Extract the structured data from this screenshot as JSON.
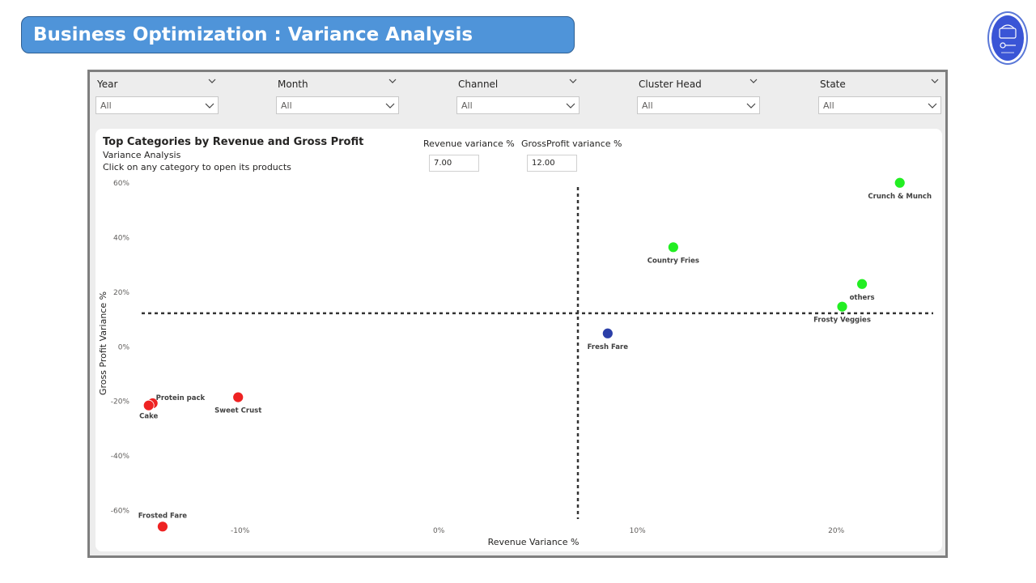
{
  "header": {
    "title": "Business Optimization : Variance Analysis"
  },
  "logo": {
    "icon": "crunchy-corner-logo-icon"
  },
  "slicers": [
    {
      "label": "Year",
      "value": "All"
    },
    {
      "label": "Month",
      "value": "All"
    },
    {
      "label": "Channel",
      "value": "All"
    },
    {
      "label": "Cluster Head",
      "value": "All"
    },
    {
      "label": "State",
      "value": "All"
    }
  ],
  "panel": {
    "title": "Top Categories by Revenue and Gross Profit",
    "subtitle": "Variance Analysis",
    "instruction": "Click on any category to open its products"
  },
  "params": {
    "revenue_label": "Revenue variance %",
    "revenue_value": "7.00",
    "gp_label": "GrossProfit variance %",
    "gp_value": "12.00"
  },
  "colors": {
    "above": "#22ee22",
    "middle": "#2b3fa8",
    "below": "#ee2222",
    "accent": "#4f94d9"
  },
  "chart_data": {
    "type": "scatter",
    "xlabel": "Revenue Variance %",
    "ylabel": "Gross Profit Variance %",
    "xlim": [
      -15.2,
      24.8
    ],
    "ylim": [
      -67,
      63
    ],
    "xticks": [
      {
        "value": -10,
        "label": "-10%"
      },
      {
        "value": 0,
        "label": "0%"
      },
      {
        "value": 10,
        "label": "10%"
      },
      {
        "value": 20,
        "label": "20%"
      }
    ],
    "yticks": [
      {
        "value": 60,
        "label": "60%"
      },
      {
        "value": 40,
        "label": "40%"
      },
      {
        "value": 20,
        "label": "20%"
      },
      {
        "value": 0,
        "label": "0%"
      },
      {
        "value": -20,
        "label": "-20%"
      },
      {
        "value": -40,
        "label": "-40%"
      },
      {
        "value": -60,
        "label": "-60%"
      }
    ],
    "reference_lines": {
      "x": 7.0,
      "y": 12.0
    },
    "points": [
      {
        "label": "Crunch & Munch",
        "x": 23.2,
        "y": 59.8,
        "color": "#22ee22"
      },
      {
        "label": "Country Fries",
        "x": 11.8,
        "y": 36.2,
        "color": "#22ee22"
      },
      {
        "label": "others",
        "x": 21.3,
        "y": 22.7,
        "color": "#22ee22"
      },
      {
        "label": "Frosty Veggies",
        "x": 20.3,
        "y": 14.4,
        "color": "#22ee22"
      },
      {
        "label": "Fresh Fare",
        "x": 8.5,
        "y": 4.6,
        "color": "#2b3fa8"
      },
      {
        "label": "Sweet Crust",
        "x": -10.1,
        "y": -18.8,
        "color": "#ee2222"
      },
      {
        "label": "Protein pack",
        "x": -14.4,
        "y": -21.0,
        "color": "#ee2222"
      },
      {
        "label": "Cake",
        "x": -14.6,
        "y": -21.8,
        "color": "#ee2222"
      },
      {
        "label": "Frosted Fare",
        "x": -13.9,
        "y": -66.2,
        "color": "#ee2222"
      }
    ]
  }
}
